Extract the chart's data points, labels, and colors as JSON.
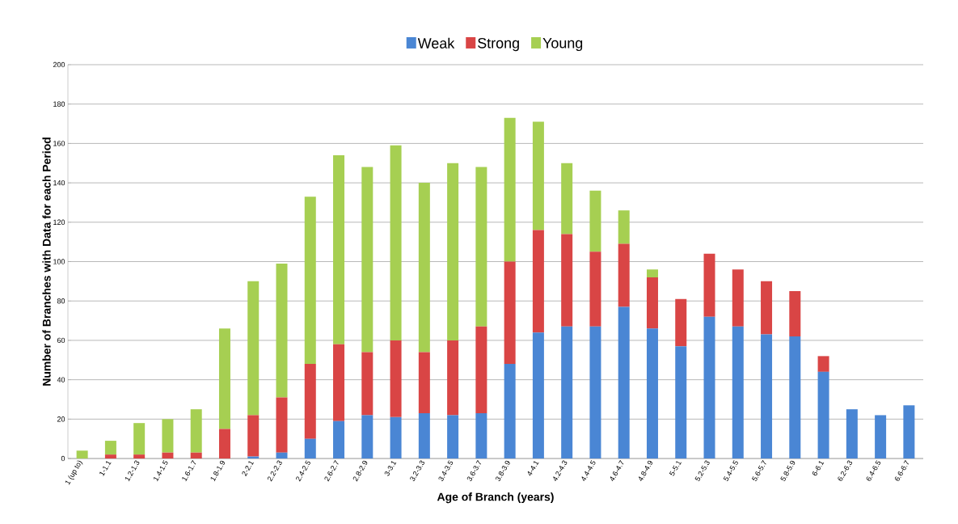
{
  "chart_data": {
    "type": "bar",
    "stacked": true,
    "xlabel": "Age of Branch (years)",
    "ylabel": "Number of Branches with Data for each Period",
    "categories": [
      "1 (up to)",
      "1-1.1",
      "1.2-1.3",
      "1.4-1.5",
      "1.6-1.7",
      "1.8-1.9",
      "2-2.1",
      "2.2-2.3",
      "2.4-2.5",
      "2.6-2.7",
      "2.8-2.9",
      "3-3.1",
      "3.2-3.3",
      "3.4-3.5",
      "3.6-3.7",
      "3.8-3.9",
      "4-4.1",
      "4.2-4.3",
      "4.4-4.5",
      "4.6-4.7",
      "4.8-4.9",
      "5-5.1",
      "5.2-5.3",
      "5.4-5.5",
      "5.6-5.7",
      "5.8-5.9",
      "6-6.1",
      "6.2-6.3",
      "6.4-6.5",
      "6.6-6.7"
    ],
    "series": [
      {
        "name": "Weak",
        "color": "#4a86d4",
        "values": [
          0,
          0,
          0,
          0,
          0,
          0,
          1,
          3,
          10,
          19,
          22,
          21,
          23,
          22,
          23,
          48,
          64,
          67,
          67,
          77,
          66,
          57,
          72,
          67,
          63,
          62,
          44,
          25,
          22,
          27
        ]
      },
      {
        "name": "Strong",
        "color": "#d94545",
        "values": [
          0,
          2,
          2,
          3,
          3,
          15,
          21,
          28,
          38,
          39,
          32,
          39,
          31,
          38,
          44,
          52,
          52,
          47,
          38,
          32,
          26,
          24,
          32,
          29,
          27,
          23,
          8,
          0,
          0,
          0
        ]
      },
      {
        "name": "Young",
        "color": "#a6cf52",
        "values": [
          4,
          7,
          16,
          17,
          22,
          51,
          68,
          68,
          85,
          96,
          94,
          99,
          86,
          90,
          81,
          73,
          55,
          36,
          31,
          17,
          4,
          0,
          0,
          0,
          0,
          0,
          0,
          0,
          0,
          0
        ]
      }
    ],
    "ylim": [
      0,
      200
    ],
    "yticks": [
      0,
      20,
      40,
      60,
      80,
      100,
      120,
      140,
      160,
      180,
      200
    ],
    "grid": "y",
    "legend": "top"
  }
}
